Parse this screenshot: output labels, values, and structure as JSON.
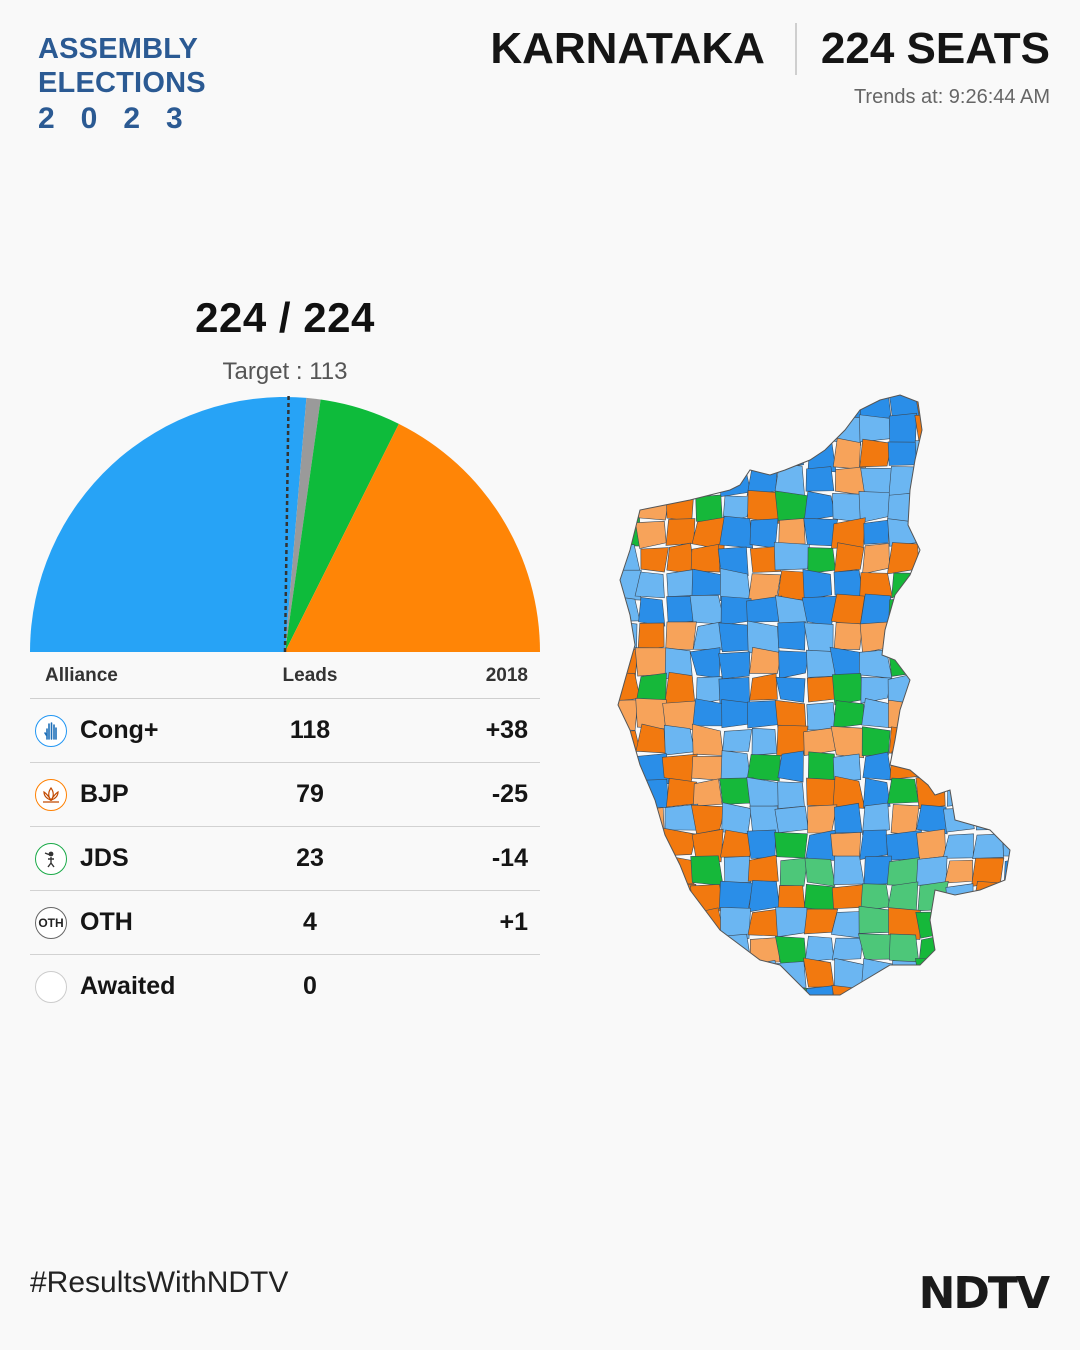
{
  "brand": {
    "line1": "ASSEMBLY",
    "line2": "ELECTIONS",
    "year": "2023"
  },
  "header": {
    "state": "KARNATAKA",
    "seats": "224 SEATS",
    "trends": "Trends at: 9:26:44 AM"
  },
  "summary": {
    "total": "224  / 224",
    "target": "Target : 113"
  },
  "colors": {
    "cong": "#27a3f6",
    "bjp": "#ff8506",
    "jds": "#0ebb3b",
    "oth": "#9a9a9a",
    "map_cong_dark": "#2a8ee8",
    "map_cong_light": "#6bb6f2",
    "map_bjp_dark": "#f2790f",
    "map_bjp_light": "#f7a35a",
    "map_jds_dark": "#16b83a",
    "map_jds_light": "#4dc779"
  },
  "chart_data": {
    "type": "pie",
    "style": "semicircle",
    "total_seats": 224,
    "target": 113,
    "slices": [
      {
        "name": "Cong+",
        "value": 118,
        "color": "#27a3f6"
      },
      {
        "name": "OTH",
        "value": 4,
        "color": "#9a9a9a"
      },
      {
        "name": "JDS",
        "value": 23,
        "color": "#0ebb3b"
      },
      {
        "name": "BJP",
        "value": 79,
        "color": "#ff8506"
      }
    ]
  },
  "table": {
    "headers": {
      "alliance": "Alliance",
      "leads": "Leads",
      "prev": "2018"
    },
    "rows": [
      {
        "alliance": "Cong+",
        "leads": "118",
        "prev": "+38",
        "symbol": "hand-icon"
      },
      {
        "alliance": "BJP",
        "leads": "79",
        "prev": "-25",
        "symbol": "lotus-icon"
      },
      {
        "alliance": "JDS",
        "leads": "23",
        "prev": "-14",
        "symbol": "farmer-icon"
      },
      {
        "alliance": "OTH",
        "leads": "4",
        "prev": "+1",
        "symbol": "oth-icon",
        "symbol_text": "OTH"
      },
      {
        "alliance": "Awaited",
        "leads": "0",
        "prev": "",
        "symbol": "empty-circle-icon"
      }
    ]
  },
  "footer": {
    "hashtag": "#ResultsWithNDTV",
    "logo": "NDTV"
  }
}
